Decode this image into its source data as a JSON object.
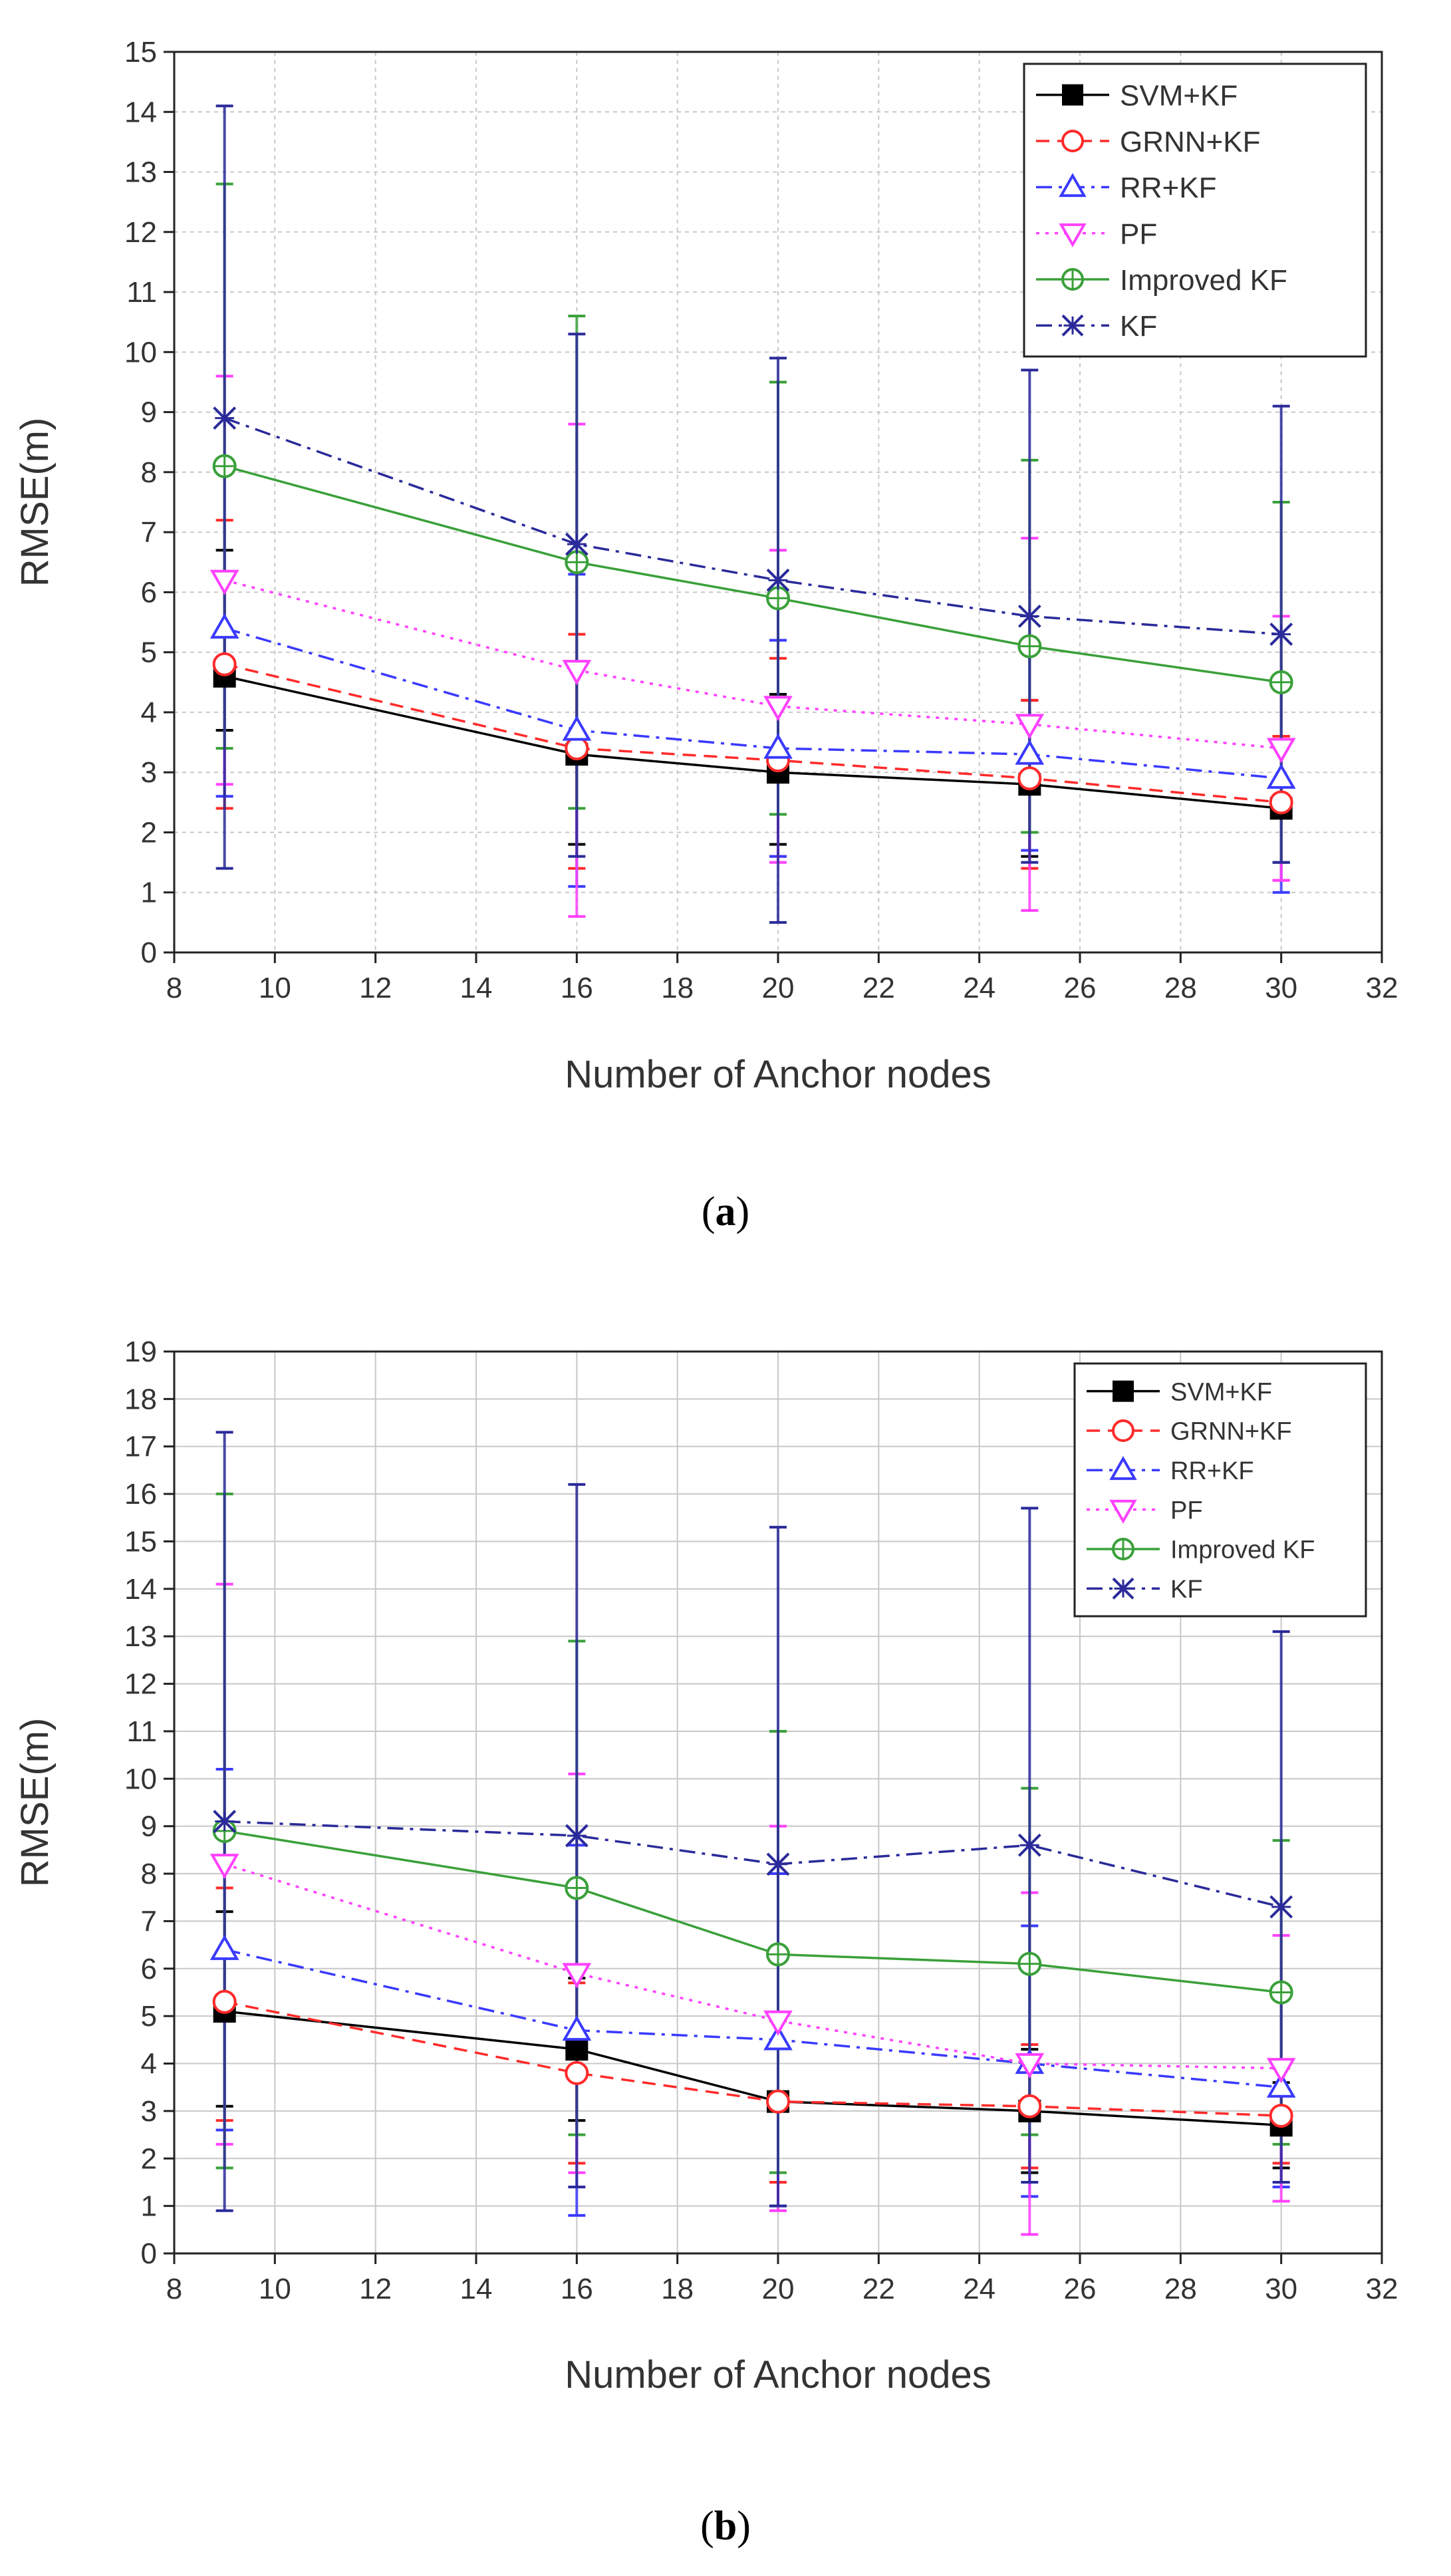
{
  "chart_data": [
    {
      "type": "line",
      "panel": "a",
      "caption_label": "a",
      "xlabel": "Number of Anchor nodes",
      "ylabel": "RMSE(m)",
      "xlim": [
        8,
        32
      ],
      "ylim": [
        0,
        15
      ],
      "xticks": [
        8,
        10,
        12,
        14,
        16,
        18,
        20,
        22,
        24,
        26,
        28,
        30,
        32
      ],
      "yticks": [
        0,
        1,
        2,
        3,
        4,
        5,
        6,
        7,
        8,
        9,
        10,
        11,
        12,
        13,
        14,
        15
      ],
      "grid": true,
      "legend_position": "top-right",
      "x": [
        9,
        16,
        20,
        25,
        30
      ],
      "series": [
        {
          "name": "SVM+KF",
          "color": "#000000",
          "marker": "square",
          "dash": "solid",
          "values": [
            4.6,
            3.3,
            3.0,
            2.8,
            2.4
          ],
          "err_low": [
            3.7,
            1.8,
            1.8,
            1.6,
            1.5
          ],
          "err_high": [
            6.7,
            4.8,
            4.3,
            4.2,
            3.6
          ]
        },
        {
          "name": "GRNN+KF",
          "color": "#ff2a2a",
          "marker": "circle",
          "dash": "dash",
          "values": [
            4.8,
            3.4,
            3.2,
            2.9,
            2.5
          ],
          "err_low": [
            2.4,
            1.4,
            1.6,
            1.4,
            1.2
          ],
          "err_high": [
            7.2,
            5.3,
            4.9,
            4.2,
            3.6
          ]
        },
        {
          "name": "RR+KF",
          "color": "#3a3aff",
          "marker": "triangle-up",
          "dash": "dashdot",
          "values": [
            5.4,
            3.7,
            3.4,
            3.3,
            2.9
          ],
          "err_low": [
            2.6,
            1.1,
            1.6,
            1.7,
            1.0
          ],
          "err_high": [
            8.2,
            6.3,
            5.2,
            5.0,
            4.4
          ]
        },
        {
          "name": "PF",
          "color": "#ff40ff",
          "marker": "triangle-down",
          "dash": "dot",
          "values": [
            6.2,
            4.7,
            4.1,
            3.8,
            3.4
          ],
          "err_low": [
            2.8,
            0.6,
            1.5,
            0.7,
            1.2
          ],
          "err_high": [
            9.6,
            8.8,
            6.7,
            6.9,
            5.6
          ]
        },
        {
          "name": "Improved KF",
          "color": "#3aa03a",
          "marker": "circle-plus",
          "dash": "solid",
          "values": [
            8.1,
            6.5,
            5.9,
            5.1,
            4.5
          ],
          "err_low": [
            3.4,
            2.4,
            2.3,
            2.0,
            1.5
          ],
          "err_high": [
            12.8,
            10.6,
            9.5,
            8.2,
            7.5
          ]
        },
        {
          "name": "KF",
          "color": "#2a2a9a",
          "marker": "star-x",
          "dash": "dashdot",
          "values": [
            8.9,
            6.8,
            6.2,
            5.6,
            5.3
          ],
          "err_low": [
            1.4,
            1.6,
            0.5,
            1.5,
            1.5
          ],
          "err_high": [
            14.1,
            10.3,
            9.9,
            9.7,
            9.1
          ]
        }
      ]
    },
    {
      "type": "line",
      "panel": "b",
      "caption_label": "b",
      "xlabel": "Number of Anchor nodes",
      "ylabel": "RMSE(m)",
      "xlim": [
        8,
        32
      ],
      "ylim": [
        0,
        19
      ],
      "xticks": [
        8,
        10,
        12,
        14,
        16,
        18,
        20,
        22,
        24,
        26,
        28,
        30,
        32
      ],
      "yticks": [
        0,
        1,
        2,
        3,
        4,
        5,
        6,
        7,
        8,
        9,
        10,
        11,
        12,
        13,
        14,
        15,
        16,
        17,
        18,
        19
      ],
      "grid": true,
      "legend_position": "top-right",
      "x": [
        9,
        16,
        20,
        25,
        30
      ],
      "series": [
        {
          "name": "SVM+KF",
          "color": "#000000",
          "marker": "square",
          "dash": "solid",
          "values": [
            5.1,
            4.3,
            3.2,
            3.0,
            2.7
          ],
          "err_low": [
            3.1,
            2.8,
            1.5,
            1.7,
            1.8
          ],
          "err_high": [
            7.2,
            5.8,
            4.9,
            4.3,
            3.6
          ]
        },
        {
          "name": "GRNN+KF",
          "color": "#ff2a2a",
          "marker": "circle",
          "dash": "dash",
          "values": [
            5.3,
            3.8,
            3.2,
            3.1,
            2.9
          ],
          "err_low": [
            2.8,
            1.9,
            1.5,
            1.8,
            1.9
          ],
          "err_high": [
            7.7,
            5.7,
            4.9,
            4.4,
            3.9
          ]
        },
        {
          "name": "RR+KF",
          "color": "#3a3aff",
          "marker": "triangle-up",
          "dash": "dashdot",
          "values": [
            6.4,
            4.7,
            4.5,
            4.0,
            3.5
          ],
          "err_low": [
            2.6,
            0.8,
            1.0,
            1.2,
            1.4
          ],
          "err_high": [
            10.2,
            8.6,
            8.0,
            6.9,
            5.6
          ]
        },
        {
          "name": "PF",
          "color": "#ff40ff",
          "marker": "triangle-down",
          "dash": "dot",
          "values": [
            8.2,
            5.9,
            4.9,
            4.0,
            3.9
          ],
          "err_low": [
            2.3,
            1.7,
            0.9,
            0.4,
            1.1
          ],
          "err_high": [
            14.1,
            10.1,
            9.0,
            7.6,
            6.7
          ]
        },
        {
          "name": "Improved KF",
          "color": "#3aa03a",
          "marker": "circle-plus",
          "dash": "solid",
          "values": [
            8.9,
            7.7,
            6.3,
            6.1,
            5.5
          ],
          "err_low": [
            1.8,
            2.5,
            1.7,
            2.5,
            2.3
          ],
          "err_high": [
            16.0,
            12.9,
            11.0,
            9.8,
            8.7
          ]
        },
        {
          "name": "KF",
          "color": "#2a2a9a",
          "marker": "star-x",
          "dash": "dashdot",
          "values": [
            9.1,
            8.8,
            8.2,
            8.6,
            7.3
          ],
          "err_low": [
            0.9,
            1.4,
            1.0,
            1.5,
            1.5
          ],
          "err_high": [
            17.3,
            16.2,
            15.3,
            15.7,
            13.1
          ]
        }
      ]
    }
  ]
}
